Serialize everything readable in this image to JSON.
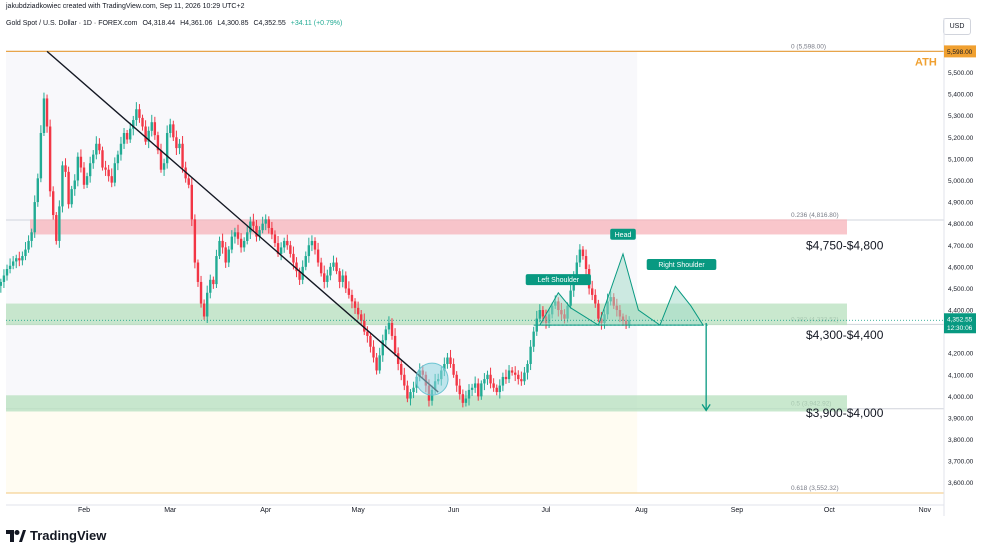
{
  "credit": "jakubdziadkowiec created with TradingView.com, Sep 11, 2026 10:29 UTC+2",
  "legend": {
    "symbol": "Gold Spot / U.S. Dollar · 1D · FOREX.com",
    "open": "O4,318.44",
    "high": "H4,361.06",
    "low": "L4,300.85",
    "close": "C4,352.55",
    "change": "+34.11 (+0.79%)"
  },
  "currency": "USD",
  "brand": "TradingView",
  "colors": {
    "up": "#22ab94",
    "down": "#f23645",
    "resistance_zone": "#f7b3ba",
    "support_zone": "#b7e0bd",
    "ath_line": "#e8a54a",
    "fib_line": "#e0e3eb",
    "price_label_bg": "#089981"
  },
  "chart_data": {
    "type": "candlestick",
    "x_axis": [
      "Feb",
      "Mar",
      "Apr",
      "May",
      "Jun",
      "Jul",
      "Aug",
      "Sep",
      "Oct",
      "Nov"
    ],
    "y_ticks": [
      "5,500.00",
      "5,400.00",
      "5,300.00",
      "5,200.00",
      "5,100.00",
      "5,000.00",
      "4,900.00",
      "4,800.00",
      "4,700.00",
      "4,600.00",
      "4,500.00",
      "4,400.00",
      "4,200.00",
      "4,100.00",
      "4,000.00",
      "3,900.00",
      "3,800.00",
      "3,700.00",
      "3,600.00"
    ],
    "ylim": [
      3520,
      5660
    ],
    "y_ticks_values": [
      5500,
      5400,
      5300,
      5200,
      5100,
      5000,
      4900,
      4800,
      4700,
      4600,
      4500,
      4400,
      4200,
      4100,
      4000,
      3900,
      3800,
      3700,
      3600
    ],
    "last_price": {
      "value": 4352.55,
      "label": "4,352.55",
      "countdown": "12:30:06"
    },
    "ath": {
      "value": 5598,
      "label": "5,598.00",
      "text": "ATH"
    },
    "fib_levels": [
      {
        "value": 5598,
        "label": "0 (5,598.00)"
      },
      {
        "value": 4816.8,
        "label": "0.236 (4,816.80)"
      },
      {
        "value": 4333.52,
        "label": "0.382 (4,333.52)"
      },
      {
        "value": 3942.92,
        "label": "0.5 (3,942.92)"
      },
      {
        "value": 3552.32,
        "label": "0.618 (3,552.32)"
      }
    ],
    "zones": [
      {
        "type": "resistance",
        "low": 4750,
        "high": 4820,
        "label": "$4,750-$4,800"
      },
      {
        "type": "support",
        "low": 4330,
        "high": 4430,
        "label": "$4,300-$4,400"
      },
      {
        "type": "support",
        "low": 3930,
        "high": 4005,
        "label": "$3,900-$4,000"
      }
    ],
    "pattern": {
      "left": "Left Shoulder",
      "head": "Head",
      "right": "Right Shoulder"
    },
    "trendline": {
      "from": {
        "bar": 20,
        "value": 5598
      },
      "to": {
        "bar": 147,
        "value": 4020
      }
    },
    "target_arrow": {
      "from": 4340,
      "to": 3935
    },
    "start_bar": -32,
    "closes": [
      4440,
      4455,
      4475,
      4500,
      4512,
      4530,
      4560,
      4590,
      4605,
      4625,
      4640,
      4630,
      4650,
      4680,
      4720,
      4760,
      4900,
      5010,
      5220,
      5380,
      5250,
      4950,
      4840,
      4720,
      4880,
      5070,
      5040,
      4890,
      4960,
      5000,
      5110,
      5060,
      4980,
      5020,
      5080,
      5120,
      5170,
      5140,
      5060,
      5050,
      5020,
      4990,
      5080,
      5120,
      5170,
      5220,
      5190,
      5240,
      5280,
      5330,
      5290,
      5250,
      5180,
      5230,
      5270,
      5210,
      5140,
      5050,
      5080,
      5220,
      5260,
      5200,
      5150,
      5170,
      5060,
      5010,
      4980,
      4820,
      4620,
      4530,
      4430,
      4370,
      4480,
      4540,
      4520,
      4650,
      4720,
      4690,
      4620,
      4680,
      4740,
      4760,
      4730,
      4690,
      4720,
      4760,
      4810,
      4790,
      4740,
      4770,
      4800,
      4820,
      4780,
      4750,
      4710,
      4660,
      4690,
      4720,
      4700,
      4660,
      4620,
      4580,
      4540,
      4600,
      4650,
      4700,
      4720,
      4680,
      4620,
      4570,
      4530,
      4560,
      4600,
      4620,
      4580,
      4530,
      4560,
      4500,
      4470,
      4440,
      4410,
      4380,
      4350,
      4300,
      4280,
      4230,
      4180,
      4120,
      4190,
      4260,
      4310,
      4340,
      4280,
      4200,
      4150,
      4100,
      4050,
      3990,
      4020,
      4040,
      4090,
      4120,
      4100,
      4050,
      3980,
      4030,
      4070,
      4080,
      4120,
      4150,
      4180,
      4150,
      4100,
      4050,
      4010,
      3970,
      3990,
      4030,
      4040,
      4060,
      4000,
      4060,
      4080,
      4100,
      4060,
      4040,
      4020,
      4050,
      4090,
      4080,
      4120,
      4110,
      4100,
      4080,
      4070,
      4110,
      4150,
      4230,
      4300,
      4360,
      4400,
      4370,
      4340,
      4380,
      4420,
      4440,
      4400,
      4380,
      4360,
      4420,
      4490,
      4560,
      4620,
      4680,
      4650,
      4590,
      4500,
      4470,
      4430,
      4360,
      4340,
      4380,
      4440,
      4460,
      4420,
      4400,
      4370,
      4350,
      4330,
      4352.55
    ]
  }
}
